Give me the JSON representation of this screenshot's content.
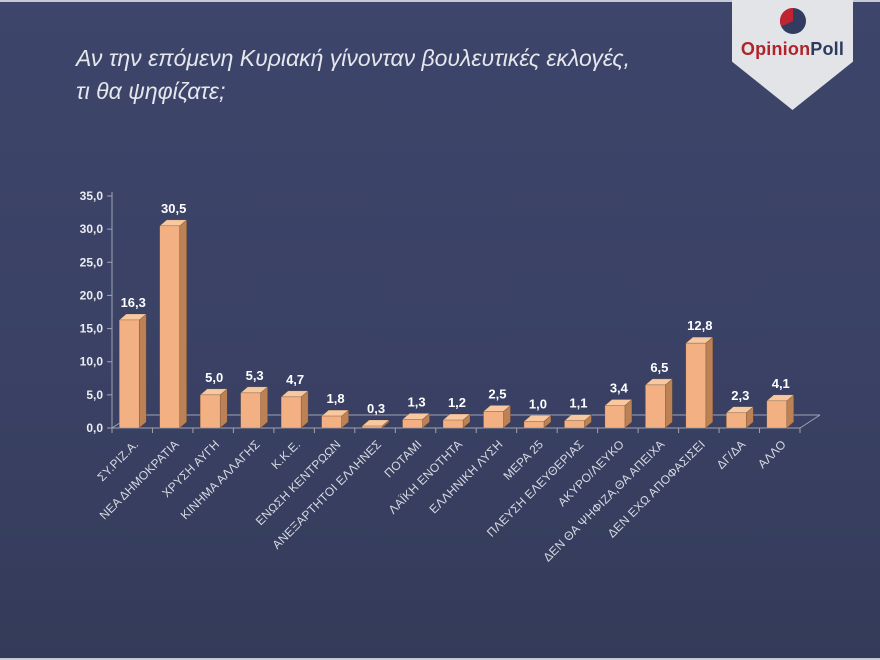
{
  "header": {
    "title_line1": "Αν την επόμενη Κυριακή γίνονταν βουλευτικές εκλογές,",
    "title_line2": "τι θα ψηφίζατε;"
  },
  "logo": {
    "brand_part1": "Opinion",
    "brand_part2": "Poll",
    "colors": {
      "badge": "#E3E4E8",
      "part1": "#B0232A",
      "part2": "#2D3A5F",
      "pie_base": "#313C60",
      "pie_slice": "#BF2430"
    }
  },
  "chart_data": {
    "type": "bar",
    "style": "3d-column",
    "categories": [
      "ΣΥ.ΡΙΖ.Α.",
      "ΝΕΑ ΔΗΜΟΚΡΑΤΙΑ",
      "ΧΡΥΣΗ ΑΥΓΗ",
      "ΚΙΝΗΜΑ ΑΛΛΑΓΗΣ",
      "Κ.Κ.Ε.",
      "ΕΝΩΣΗ ΚΕΝΤΡΩΩΝ",
      "ΑΝΕΞΑΡΤΗΤΟΙ ΕΛΛΗΝΕΣ",
      "ΠΟΤΑΜΙ",
      "ΛΑΪΚΗ ΕΝΟΤΗΤΑ",
      "ΕΛΛΗΝΙΚΗ ΛΥΣΗ",
      "ΜΕΡΑ 25",
      "ΠΛΕΥΣΗ ΕΛΕΥΘΕΡΙΑΣ",
      "ΑΚΥΡΟ/ΛΕΥΚΟ",
      "ΔΕΝ ΘΑ ΨΗΦΙΖΑ,ΘΑ ΑΠΕΙΧΑ",
      "ΔΕΝ ΕΧΩ ΑΠΟΦΑΣΙΣΕΙ",
      "ΔΓ/ΔΑ",
      "ΑΛΛΟ"
    ],
    "values": [
      16.3,
      30.5,
      5.0,
      5.3,
      4.7,
      1.8,
      0.3,
      1.3,
      1.2,
      2.5,
      1.0,
      1.1,
      3.4,
      6.5,
      12.8,
      2.3,
      4.1
    ],
    "value_labels": [
      "16,3",
      "30,5",
      "5,0",
      "5,3",
      "4,7",
      "1,8",
      "0,3",
      "1,3",
      "1,2",
      "2,5",
      "1,0",
      "1,1",
      "3,4",
      "6,5",
      "12,8",
      "2,3",
      "4,1"
    ],
    "y_ticks": [
      "0,0",
      "5,0",
      "10,0",
      "15,0",
      "20,0",
      "25,0",
      "30,0",
      "35,0"
    ],
    "ylim": [
      0,
      35
    ],
    "y_tick_step": 5,
    "grid": false,
    "legend": false,
    "xlabel": "",
    "ylabel": "",
    "colors": {
      "bar_front": "#F3B083",
      "bar_side": "#BD8156",
      "bar_top": "#F8C9A0",
      "axis": "#9FA4B2",
      "background": "#3A4165"
    }
  }
}
